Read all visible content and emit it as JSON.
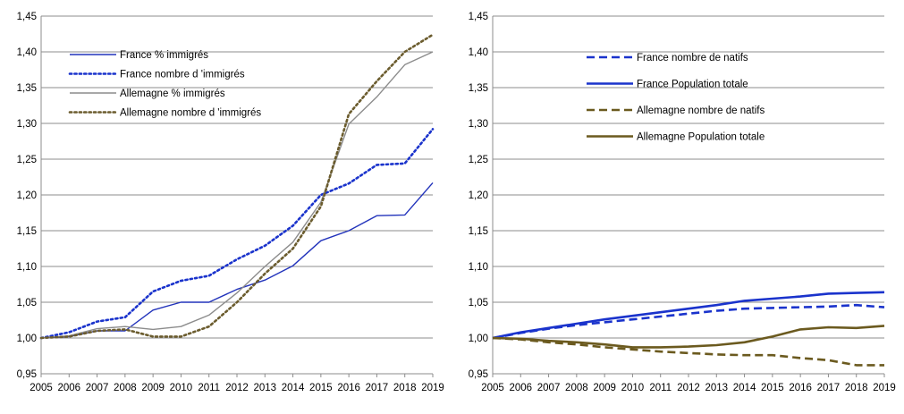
{
  "chart_data": [
    {
      "type": "line",
      "title": "",
      "xlabel": "",
      "ylabel": "",
      "ylim": [
        0.95,
        1.45
      ],
      "yticks": [
        "0,95",
        "1,00",
        "1,05",
        "1,10",
        "1,15",
        "1,20",
        "1,25",
        "1,30",
        "1,35",
        "1,40",
        "1,45"
      ],
      "x": [
        2005,
        2006,
        2007,
        2008,
        2009,
        2010,
        2011,
        2012,
        2013,
        2014,
        2015,
        2016,
        2017,
        2018,
        2019
      ],
      "grid": true,
      "legend_position": "top-left",
      "series": [
        {
          "name": "France % immigrés",
          "color": "#2233bb",
          "style": "solid",
          "values": [
            1.0,
            1.002,
            1.01,
            1.01,
            1.039,
            1.05,
            1.05,
            1.068,
            1.081,
            1.101,
            1.136,
            1.15,
            1.171,
            1.172,
            1.217
          ]
        },
        {
          "name": "France nombre d 'immigrés",
          "color": "#1a33cc",
          "style": "dotted",
          "values": [
            1.0,
            1.008,
            1.023,
            1.029,
            1.065,
            1.08,
            1.087,
            1.11,
            1.129,
            1.157,
            1.2,
            1.216,
            1.242,
            1.244,
            1.292
          ]
        },
        {
          "name": "Allemagne % immigrés",
          "color": "#8c8c8c",
          "style": "solid",
          "values": [
            1.0,
            1.003,
            1.013,
            1.016,
            1.012,
            1.016,
            1.032,
            1.063,
            1.1,
            1.134,
            1.19,
            1.299,
            1.337,
            1.382,
            1.4
          ]
        },
        {
          "name": "Allemagne nombre d 'immigrés",
          "color": "#6b5c2e",
          "style": "dotted",
          "values": [
            1.0,
            1.002,
            1.01,
            1.012,
            1.002,
            1.002,
            1.016,
            1.05,
            1.09,
            1.125,
            1.184,
            1.313,
            1.359,
            1.4,
            1.424
          ]
        }
      ]
    },
    {
      "type": "line",
      "title": "",
      "xlabel": "",
      "ylabel": "",
      "ylim": [
        0.95,
        1.45
      ],
      "yticks": [
        "0,95",
        "1,00",
        "1,05",
        "1,10",
        "1,15",
        "1,20",
        "1,25",
        "1,30",
        "1,35",
        "1,40",
        "1,45"
      ],
      "x": [
        2005,
        2006,
        2007,
        2008,
        2009,
        2010,
        2011,
        2012,
        2013,
        2014,
        2015,
        2016,
        2017,
        2018,
        2019
      ],
      "grid": true,
      "legend_position": "top-center",
      "series": [
        {
          "name": "France nombre de natifs",
          "color": "#1a33cc",
          "style": "dashed",
          "values": [
            1.0,
            1.007,
            1.013,
            1.018,
            1.022,
            1.026,
            1.03,
            1.034,
            1.038,
            1.041,
            1.042,
            1.043,
            1.044,
            1.046,
            1.043
          ]
        },
        {
          "name": "France Population totale",
          "color": "#1a33cc",
          "style": "solid",
          "values": [
            1.0,
            1.008,
            1.014,
            1.02,
            1.026,
            1.031,
            1.036,
            1.041,
            1.046,
            1.052,
            1.055,
            1.058,
            1.062,
            1.063,
            1.064
          ]
        },
        {
          "name": "Allemagne nombre de natifs",
          "color": "#6b5a1f",
          "style": "dashed",
          "values": [
            1.0,
            0.998,
            0.994,
            0.991,
            0.987,
            0.984,
            0.981,
            0.979,
            0.977,
            0.976,
            0.976,
            0.972,
            0.969,
            0.962,
            0.962
          ]
        },
        {
          "name": "Allemagne Population totale",
          "color": "#6b5a1f",
          "style": "solid",
          "values": [
            1.0,
            0.999,
            0.996,
            0.994,
            0.991,
            0.987,
            0.987,
            0.988,
            0.99,
            0.994,
            1.002,
            1.012,
            1.015,
            1.014,
            1.017
          ]
        }
      ]
    }
  ]
}
